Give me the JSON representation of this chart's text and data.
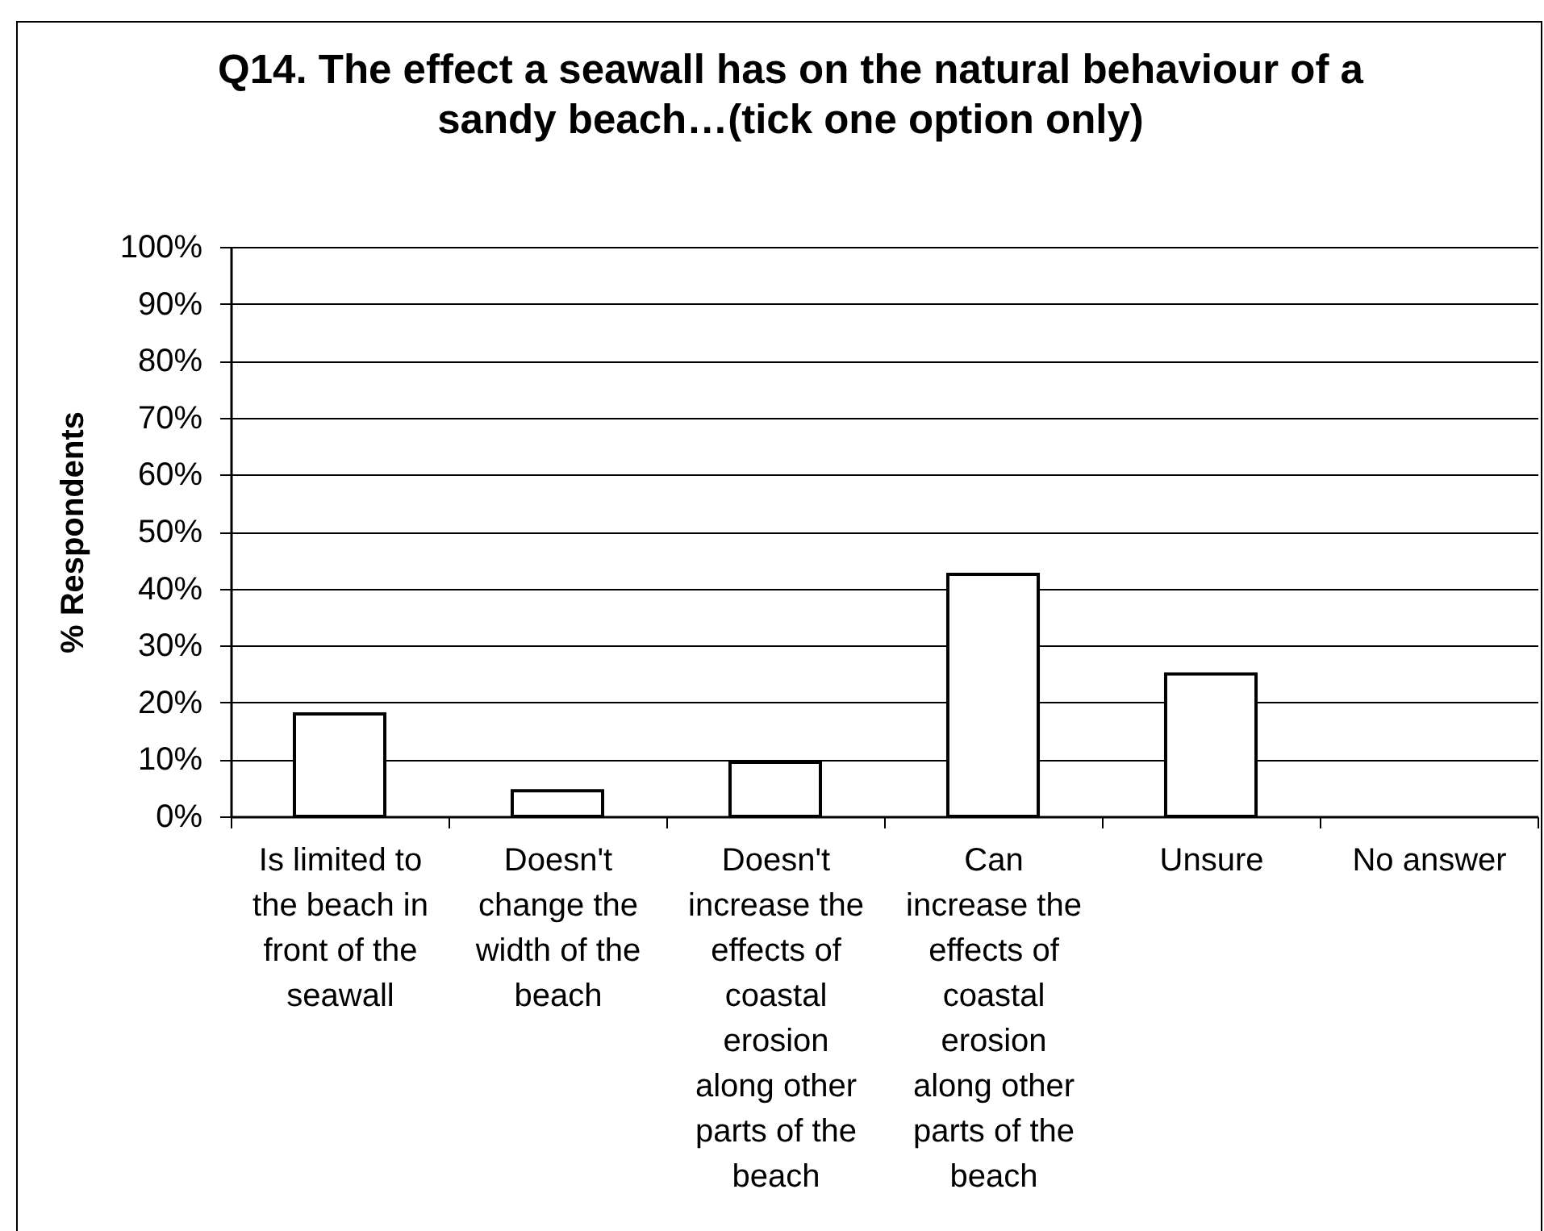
{
  "chart_data": {
    "type": "bar",
    "title": "Q14. The effect a seawall has on the natural behaviour of a sandy beach…(tick one option only)",
    "ylabel": "% Respondents",
    "categories": [
      "Is limited to the beach in front of the seawall",
      "Doesn't change the width of the beach",
      "Doesn't increase the effects of coastal erosion along other parts of the beach",
      "Can increase the effects of coastal erosion along other parts of the beach",
      "Unsure",
      "No answer"
    ],
    "values": [
      18,
      4.5,
      9.5,
      42.5,
      25,
      0
    ],
    "color": "#ffffff",
    "ylim": [
      0,
      100
    ],
    "yticks": [
      {
        "value": 0,
        "label": "0%"
      },
      {
        "value": 10,
        "label": "10%"
      },
      {
        "value": 20,
        "label": "20%"
      },
      {
        "value": 30,
        "label": "30%"
      },
      {
        "value": 40,
        "label": "40%"
      },
      {
        "value": 50,
        "label": "50%"
      },
      {
        "value": 60,
        "label": "60%"
      },
      {
        "value": 70,
        "label": "70%"
      },
      {
        "value": 80,
        "label": "80%"
      },
      {
        "value": 90,
        "label": "90%"
      },
      {
        "value": 100,
        "label": "100%"
      }
    ],
    "grid": "y"
  }
}
